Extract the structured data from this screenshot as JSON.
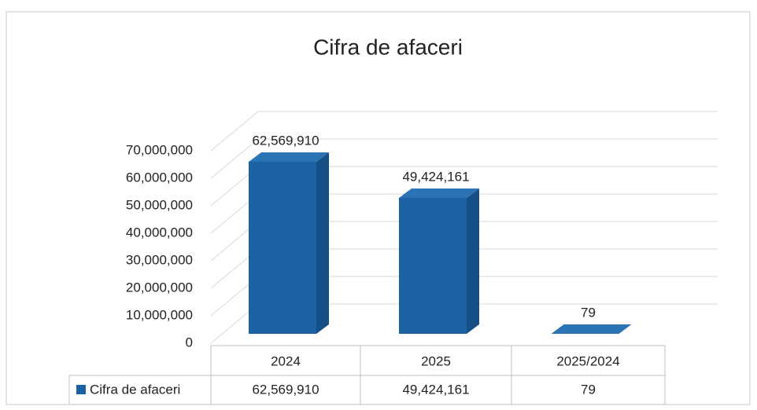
{
  "chart_data": {
    "type": "bar3d",
    "title": "Cifra de afaceri",
    "categories": [
      "2024",
      "2025",
      "2025/2024"
    ],
    "series": [
      {
        "name": "Cifra de afaceri",
        "color": "#1b62a2",
        "values": [
          62569910,
          49424161,
          79
        ],
        "value_labels": [
          "62,569,910",
          "49,424,161",
          "79"
        ]
      }
    ],
    "ylim": [
      0,
      70000000
    ],
    "yticks": [
      0,
      {
        "value": 10000000,
        "label": "10,000,000"
      },
      {
        "value": 20000000,
        "label": "20,000,000"
      },
      {
        "value": 30000000,
        "label": "30,000,000"
      },
      {
        "value": 40000000,
        "label": "40,000,000"
      },
      {
        "value": 50000000,
        "label": "50,000,000"
      },
      {
        "value": 60000000,
        "label": "60,000,000"
      },
      {
        "value": 70000000,
        "label": "70,000,000"
      }
    ],
    "grid": true,
    "data_table": true
  }
}
